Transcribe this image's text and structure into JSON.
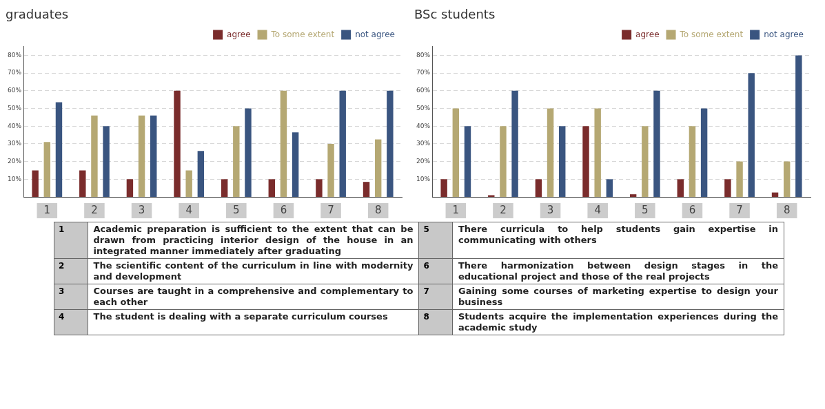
{
  "chart_data": [
    {
      "type": "bar",
      "title": "graduates",
      "categories": [
        "1",
        "2",
        "3",
        "4",
        "5",
        "6",
        "7",
        "8"
      ],
      "series": [
        {
          "name": "agree",
          "color": "#7a2c2c",
          "values": [
            15,
            15,
            10,
            60,
            10,
            10,
            10,
            8.5
          ]
        },
        {
          "name": "To some extent",
          "color": "#b5a873",
          "values": [
            31,
            46,
            46,
            15,
            40,
            60,
            30,
            32.5
          ]
        },
        {
          "name": "not agree",
          "color": "#3a5580",
          "values": [
            53.5,
            40,
            46,
            26,
            50,
            36.5,
            60,
            60
          ]
        }
      ],
      "ylim": [
        0,
        85
      ],
      "yticks": [
        {
          "value": 10,
          "label": "10%"
        },
        {
          "value": 20,
          "label": "20%"
        },
        {
          "value": 30,
          "label": "30%"
        },
        {
          "value": 40,
          "label": "40%"
        },
        {
          "value": 50,
          "label": "50%"
        },
        {
          "value": 60,
          "label": "60%"
        },
        {
          "value": 70,
          "label": "70%"
        },
        {
          "value": 80,
          "label": "80%"
        }
      ],
      "grid": "y",
      "line_style": "dashed",
      "legend": "top right"
    },
    {
      "type": "bar",
      "title": "BSc students",
      "categories": [
        "1",
        "2",
        "3",
        "4",
        "5",
        "6",
        "7",
        "8"
      ],
      "series": [
        {
          "name": "agree",
          "color": "#7a2c2c",
          "values": [
            10,
            1,
            10,
            40,
            1.5,
            10,
            10,
            2.5
          ]
        },
        {
          "name": "To some extent",
          "color": "#b5a873",
          "values": [
            50,
            40,
            50,
            50,
            40,
            40,
            20,
            20
          ]
        },
        {
          "name": "not agree",
          "color": "#3a5580",
          "values": [
            40,
            60,
            40,
            10,
            60,
            50,
            70,
            80
          ]
        }
      ],
      "ylim": [
        0,
        85
      ],
      "yticks": [
        {
          "value": 10,
          "label": "10%"
        },
        {
          "value": 20,
          "label": "20%"
        },
        {
          "value": 30,
          "label": "30%"
        },
        {
          "value": 40,
          "label": "40%"
        },
        {
          "value": 50,
          "label": "50%"
        },
        {
          "value": 60,
          "label": "60%"
        },
        {
          "value": 70,
          "label": "70%"
        },
        {
          "value": 80,
          "label": "80%"
        }
      ],
      "grid": "y",
      "line_style": "dashed",
      "legend": "top right"
    },
    {
      "type": "other",
      "categories": [
        "1",
        "2",
        "3",
        "4",
        "5",
        "6",
        "7",
        "8"
      ],
      "annotations": [
        "Academic preparation is sufficient to the extent that can be drawn from practicing interior design of the house in an integrated manner immediately after graduating",
        "The scientific content of the curriculum in line with modernity and development",
        "Courses are taught in a comprehensive and complementary to each other",
        "The student is dealing with a separate curriculum courses",
        "There curricula to help students gain expertise in communicating with others",
        "There harmonization between design stages in the educational project and those of the real projects",
        "Gaining some courses of marketing expertise to design your business",
        "Students acquire the implementation experiences during the academic study"
      ]
    }
  ]
}
